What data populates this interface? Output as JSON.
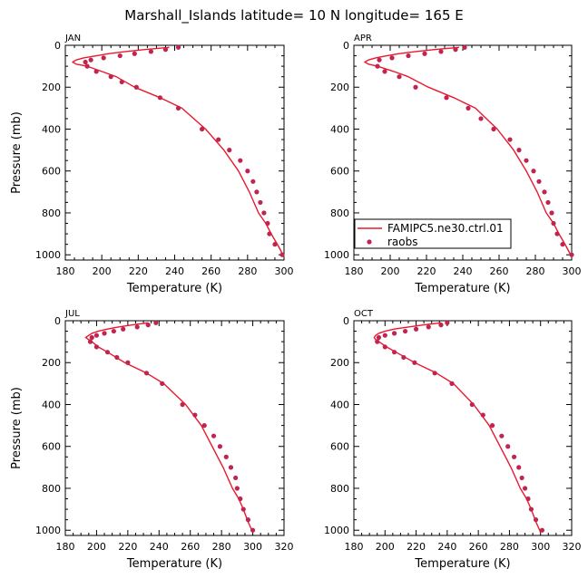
{
  "figure": {
    "title": "Marshall_Islands   latitude=  10 N  longitude=  165 E"
  },
  "chart_data": [
    {
      "type": "line",
      "panel_label": "JAN",
      "xlabel": "Temperature (K)",
      "ylabel": "Pressure (mb)",
      "xlim": [
        180,
        300
      ],
      "ylim": [
        1025,
        0
      ],
      "xticks": [
        180,
        200,
        220,
        240,
        260,
        280,
        300
      ],
      "yticks": [
        0,
        200,
        400,
        600,
        800,
        1000
      ],
      "show_legend": false,
      "series": [
        {
          "name": "FAMIPC5.ne30.ctrl.01",
          "kind": "line",
          "color": "#e8192c",
          "points": [
            [
              237,
              10
            ],
            [
              224,
              20
            ],
            [
              213,
              30
            ],
            [
              204,
              40
            ],
            [
              197,
              50
            ],
            [
              190,
              60
            ],
            [
              186,
              70
            ],
            [
              184,
              80
            ],
            [
              186,
              90
            ],
            [
              192,
              100
            ],
            [
              200,
              125
            ],
            [
              208,
              150
            ],
            [
              218,
              200
            ],
            [
              232,
              250
            ],
            [
              244,
              300
            ],
            [
              257,
              400
            ],
            [
              267,
              500
            ],
            [
              275,
              600
            ],
            [
              281,
              700
            ],
            [
              286,
              800
            ],
            [
              290,
              850
            ],
            [
              293,
              900
            ],
            [
              297,
              960
            ],
            [
              300,
              1010
            ]
          ]
        },
        {
          "name": "raobs",
          "kind": "points",
          "color": "#c0244f",
          "points": [
            [
              242,
              10
            ],
            [
              235,
              20
            ],
            [
              227,
              30
            ],
            [
              218,
              40
            ],
            [
              210,
              50
            ],
            [
              201,
              60
            ],
            [
              194,
              70
            ],
            [
              191,
              80
            ],
            [
              192,
              100
            ],
            [
              197,
              125
            ],
            [
              205,
              150
            ],
            [
              211,
              175
            ],
            [
              219,
              200
            ],
            [
              232,
              250
            ],
            [
              242,
              300
            ],
            [
              255,
              400
            ],
            [
              264,
              450
            ],
            [
              270,
              500
            ],
            [
              276,
              550
            ],
            [
              280,
              600
            ],
            [
              283,
              650
            ],
            [
              285,
              700
            ],
            [
              287,
              750
            ],
            [
              289,
              800
            ],
            [
              291,
              850
            ],
            [
              292,
              900
            ],
            [
              295,
              950
            ],
            [
              299,
              1000
            ]
          ]
        }
      ]
    },
    {
      "type": "line",
      "panel_label": "APR",
      "xlabel": "Temperature (K)",
      "ylabel": "",
      "xlim": [
        180,
        300
      ],
      "ylim": [
        1025,
        0
      ],
      "xticks": [
        180,
        200,
        220,
        240,
        260,
        280,
        300
      ],
      "yticks": [
        0,
        200,
        400,
        600,
        800,
        1000
      ],
      "show_legend": true,
      "series": [
        {
          "name": "FAMIPC5.ne30.ctrl.01",
          "kind": "line",
          "color": "#e8192c",
          "points": [
            [
              238,
              10
            ],
            [
              225,
              20
            ],
            [
              214,
              30
            ],
            [
              205,
              40
            ],
            [
              198,
              50
            ],
            [
              192,
              60
            ],
            [
              188,
              70
            ],
            [
              186,
              80
            ],
            [
              188,
              90
            ],
            [
              193,
              100
            ],
            [
              202,
              125
            ],
            [
              210,
              150
            ],
            [
              221,
              200
            ],
            [
              235,
              250
            ],
            [
              247,
              300
            ],
            [
              259,
              400
            ],
            [
              268,
              500
            ],
            [
              275,
              600
            ],
            [
              281,
              700
            ],
            [
              286,
              800
            ],
            [
              290,
              850
            ],
            [
              293,
              900
            ],
            [
              297,
              960
            ],
            [
              300,
              1010
            ]
          ]
        },
        {
          "name": "raobs",
          "kind": "points",
          "color": "#c0244f",
          "points": [
            [
              241,
              10
            ],
            [
              236,
              20
            ],
            [
              228,
              30
            ],
            [
              219,
              40
            ],
            [
              210,
              50
            ],
            [
              201,
              60
            ],
            [
              194,
              70
            ],
            [
              193,
              100
            ],
            [
              197,
              125
            ],
            [
              205,
              150
            ],
            [
              214,
              200
            ],
            [
              231,
              250
            ],
            [
              243,
              300
            ],
            [
              250,
              350
            ],
            [
              257,
              400
            ],
            [
              266,
              450
            ],
            [
              271,
              500
            ],
            [
              275,
              550
            ],
            [
              279,
              600
            ],
            [
              282,
              650
            ],
            [
              285,
              700
            ],
            [
              287,
              750
            ],
            [
              289,
              800
            ],
            [
              290,
              850
            ],
            [
              292,
              900
            ],
            [
              295,
              950
            ],
            [
              300,
              1000
            ]
          ]
        }
      ]
    },
    {
      "type": "line",
      "panel_label": "JUL",
      "xlabel": "Temperature (K)",
      "ylabel": "Pressure (mb)",
      "xlim": [
        180,
        320
      ],
      "ylim": [
        1025,
        0
      ],
      "xticks": [
        180,
        200,
        220,
        240,
        260,
        280,
        300,
        320
      ],
      "yticks": [
        0,
        200,
        400,
        600,
        800,
        1000
      ],
      "show_legend": false,
      "series": [
        {
          "name": "FAMIPC5.ne30.ctrl.01",
          "kind": "line",
          "color": "#e8192c",
          "points": [
            [
              233,
              10
            ],
            [
              223,
              20
            ],
            [
              214,
              30
            ],
            [
              207,
              40
            ],
            [
              201,
              50
            ],
            [
              197,
              60
            ],
            [
              195,
              70
            ],
            [
              193,
              80
            ],
            [
              195,
              90
            ],
            [
              197,
              100
            ],
            [
              201,
              125
            ],
            [
              207,
              150
            ],
            [
              218,
              200
            ],
            [
              232,
              250
            ],
            [
              243,
              300
            ],
            [
              257,
              400
            ],
            [
              267,
              500
            ],
            [
              274,
              600
            ],
            [
              281,
              700
            ],
            [
              287,
              800
            ],
            [
              291,
              850
            ],
            [
              294,
              900
            ],
            [
              297,
              960
            ],
            [
              300,
              1010
            ]
          ]
        },
        {
          "name": "raobs",
          "kind": "points",
          "color": "#c0244f",
          "points": [
            [
              238,
              10
            ],
            [
              233,
              20
            ],
            [
              226,
              30
            ],
            [
              217,
              40
            ],
            [
              211,
              50
            ],
            [
              205,
              60
            ],
            [
              200,
              70
            ],
            [
              197,
              80
            ],
            [
              196,
              100
            ],
            [
              200,
              125
            ],
            [
              207,
              150
            ],
            [
              213,
              175
            ],
            [
              220,
              200
            ],
            [
              232,
              250
            ],
            [
              242,
              300
            ],
            [
              255,
              400
            ],
            [
              263,
              450
            ],
            [
              269,
              500
            ],
            [
              275,
              550
            ],
            [
              279,
              600
            ],
            [
              283,
              650
            ],
            [
              286,
              700
            ],
            [
              289,
              750
            ],
            [
              290,
              800
            ],
            [
              292,
              850
            ],
            [
              294,
              900
            ],
            [
              297,
              950
            ],
            [
              300,
              1000
            ]
          ]
        }
      ]
    },
    {
      "type": "line",
      "panel_label": "OCT",
      "xlabel": "Temperature (K)",
      "ylabel": "",
      "xlim": [
        180,
        320
      ],
      "ylim": [
        1025,
        0
      ],
      "xticks": [
        180,
        200,
        220,
        240,
        260,
        280,
        300,
        320
      ],
      "yticks": [
        0,
        200,
        400,
        600,
        800,
        1000
      ],
      "show_legend": false,
      "series": [
        {
          "name": "FAMIPC5.ne30.ctrl.01",
          "kind": "line",
          "color": "#e8192c",
          "points": [
            [
              236,
              10
            ],
            [
              225,
              20
            ],
            [
              215,
              30
            ],
            [
              206,
              40
            ],
            [
              200,
              50
            ],
            [
              196,
              60
            ],
            [
              194,
              70
            ],
            [
              193,
              80
            ],
            [
              194,
              90
            ],
            [
              196,
              100
            ],
            [
              201,
              125
            ],
            [
              207,
              150
            ],
            [
              219,
              200
            ],
            [
              233,
              250
            ],
            [
              244,
              300
            ],
            [
              257,
              400
            ],
            [
              267,
              500
            ],
            [
              274,
              600
            ],
            [
              281,
              700
            ],
            [
              287,
              800
            ],
            [
              291,
              850
            ],
            [
              294,
              900
            ],
            [
              297,
              960
            ],
            [
              300,
              1010
            ]
          ]
        },
        {
          "name": "raobs",
          "kind": "points",
          "color": "#c0244f",
          "points": [
            [
              240,
              10
            ],
            [
              236,
              20
            ],
            [
              228,
              30
            ],
            [
              220,
              40
            ],
            [
              213,
              50
            ],
            [
              206,
              60
            ],
            [
              200,
              70
            ],
            [
              196,
              80
            ],
            [
              195,
              100
            ],
            [
              200,
              125
            ],
            [
              206,
              150
            ],
            [
              212,
              175
            ],
            [
              219,
              200
            ],
            [
              232,
              250
            ],
            [
              243,
              300
            ],
            [
              256,
              400
            ],
            [
              263,
              450
            ],
            [
              269,
              500
            ],
            [
              275,
              550
            ],
            [
              279,
              600
            ],
            [
              283,
              650
            ],
            [
              286,
              700
            ],
            [
              288,
              750
            ],
            [
              290,
              800
            ],
            [
              292,
              850
            ],
            [
              294,
              900
            ],
            [
              297,
              950
            ],
            [
              301,
              1000
            ]
          ]
        }
      ]
    }
  ]
}
